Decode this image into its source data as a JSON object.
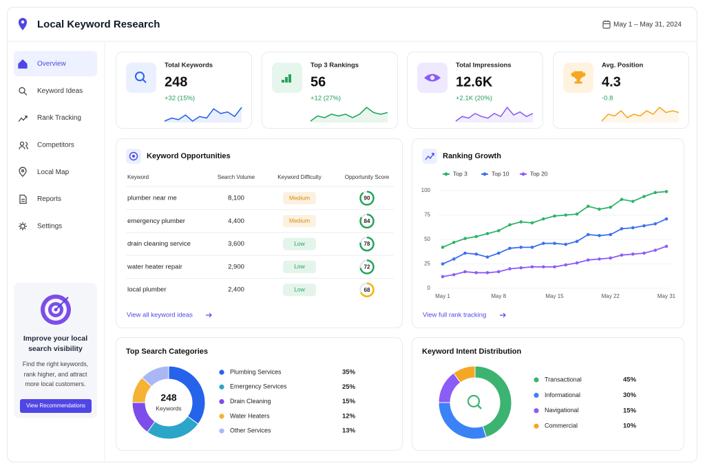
{
  "header": {
    "title": "Local Keyword Research",
    "date_range": "May 1 – May 31, 2024"
  },
  "sidebar": {
    "items": [
      "Overview",
      "Keyword Ideas",
      "Rank Tracking",
      "Competitors",
      "Local Map",
      "Reports",
      "Settings"
    ],
    "active": 0,
    "promo": {
      "title": "Improve your local search visibility",
      "text": "Find the right keywords, rank higher, and attract more local customers.",
      "button": "View Recommendations"
    }
  },
  "kpis": [
    {
      "label": "Total Keywords",
      "value": "248",
      "delta": "+32 (15%)",
      "color": "#2563eb",
      "sparkline": [
        3,
        4,
        3.5,
        5,
        3,
        4.5,
        4,
        7,
        5.5,
        6,
        4.5,
        7.5
      ]
    },
    {
      "label": "Top 3 Rankings",
      "value": "56",
      "delta": "+12 (27%)",
      "color": "#22a55a",
      "sparkline": [
        3,
        4.5,
        4,
        5,
        4.5,
        5,
        4,
        5,
        7,
        5.5,
        5,
        5.5
      ]
    },
    {
      "label": "Total Impressions",
      "value": "12.6K",
      "delta": "+2.1K (20%)",
      "color": "#8b5cf6",
      "sparkline": [
        3,
        4.5,
        4,
        5.5,
        4.5,
        4,
        5.5,
        4.5,
        7.5,
        5,
        6,
        4.5,
        5.5
      ]
    },
    {
      "label": "Avg. Position",
      "value": "4.3",
      "delta": "-0.8",
      "color": "#f5a623",
      "sparkline": [
        3,
        5,
        4.5,
        6,
        4,
        5,
        4.5,
        6,
        5,
        7,
        5.5,
        6,
        5.5
      ]
    }
  ],
  "opportunities": {
    "title": "Keyword Opportunities",
    "columns": [
      "Keyword",
      "Search Volume",
      "Keyword Difficulty",
      "Opportunity Score"
    ],
    "rows": [
      {
        "keyword": "plumber near me",
        "volume": "8,100",
        "difficulty": "Medium",
        "difficulty_color": "#e08a0b",
        "score": 90,
        "score_color": "#22a55a"
      },
      {
        "keyword": "emergency plumber",
        "volume": "4,400",
        "difficulty": "Medium",
        "difficulty_color": "#e08a0b",
        "score": 84,
        "score_color": "#22a55a"
      },
      {
        "keyword": "drain cleaning service",
        "volume": "3,600",
        "difficulty": "Low",
        "difficulty_color": "#22a55a",
        "score": 78,
        "score_color": "#22a55a"
      },
      {
        "keyword": "water heater repair",
        "volume": "2,900",
        "difficulty": "Low",
        "difficulty_color": "#22a55a",
        "score": 72,
        "score_color": "#22a55a"
      },
      {
        "keyword": "local plumber",
        "volume": "2,400",
        "difficulty": "Low",
        "difficulty_color": "#22a55a",
        "score": 68,
        "score_color": "#f5b50a"
      }
    ],
    "link": "View all keyword ideas"
  },
  "ranking_growth": {
    "type": "line",
    "title": "Ranking Growth",
    "categories": [
      "May 1",
      null,
      null,
      null,
      null,
      "May 8",
      null,
      null,
      null,
      null,
      "May 15",
      null,
      null,
      null,
      null,
      "May 22",
      null,
      null,
      null,
      null,
      "May 31"
    ],
    "series": [
      {
        "name": "Top 3",
        "color": "#2fb36a",
        "values": [
          42,
          47,
          51,
          53,
          56,
          59,
          65,
          68,
          67,
          71,
          74,
          75,
          76,
          84,
          81,
          83,
          91,
          89,
          94,
          98,
          99
        ]
      },
      {
        "name": "Top 10",
        "color": "#3b6ff0",
        "values": [
          25,
          30,
          36,
          35,
          32,
          36,
          41,
          42,
          42,
          46,
          46,
          45,
          48,
          55,
          54,
          55,
          61,
          62,
          64,
          66,
          71
        ]
      },
      {
        "name": "Top 20",
        "color": "#8b5cf6",
        "values": [
          12,
          14,
          17,
          16,
          16,
          17,
          20,
          21,
          22,
          22,
          22,
          24,
          26,
          29,
          30,
          31,
          34,
          35,
          36,
          39,
          43
        ]
      }
    ],
    "ylim": [
      0,
      100
    ],
    "yticks": [
      0,
      25,
      50,
      75,
      100
    ],
    "link": "View full rank tracking"
  },
  "top_categories": {
    "type": "pie",
    "title": "Top Search Categories",
    "center_value": "248",
    "center_label": "Keywords",
    "categories": [
      "Plumbing Services",
      "Emergency Services",
      "Drain Cleaning",
      "Water Heaters",
      "Other Services"
    ],
    "values": [
      35,
      25,
      15,
      12,
      13
    ],
    "value_labels": [
      "35%",
      "25%",
      "15%",
      "12%",
      "13%"
    ],
    "colors": [
      "#2563eb",
      "#2ba6c8",
      "#7c4dea",
      "#f5b234",
      "#a9b8f5"
    ]
  },
  "intent": {
    "type": "pie",
    "title": "Keyword Intent Distribution",
    "categories": [
      "Transactional",
      "Informational",
      "Navigational",
      "Commercial"
    ],
    "values": [
      45,
      30,
      15,
      10
    ],
    "value_labels": [
      "45%",
      "30%",
      "15%",
      "10%"
    ],
    "colors": [
      "#3cb371",
      "#3b82f6",
      "#8b5cf6",
      "#f5a623"
    ]
  }
}
